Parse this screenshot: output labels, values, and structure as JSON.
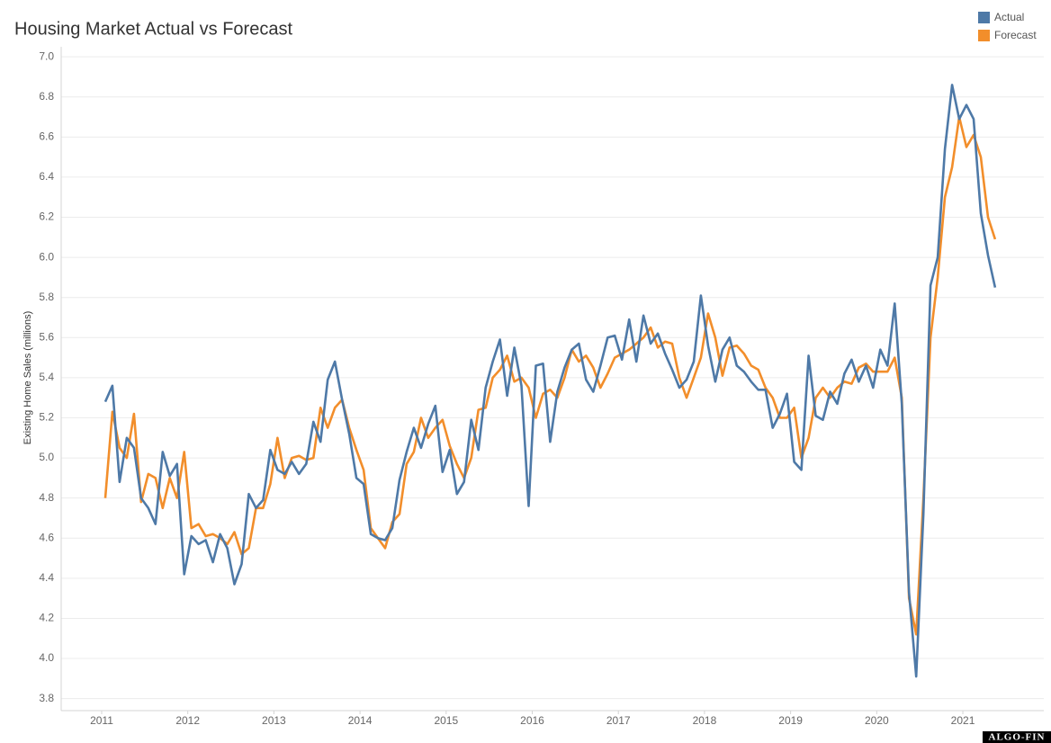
{
  "chart_data": {
    "type": "line",
    "title": "Housing Market Actual vs Forecast",
    "y_label": "Existing Home Sales (millions)",
    "watermark": "ALGO-FIN",
    "legend": "top-right",
    "grid": true,
    "x": [
      "2011-01",
      "2011-02",
      "2011-03",
      "2011-04",
      "2011-05",
      "2011-06",
      "2011-07",
      "2011-08",
      "2011-09",
      "2011-10",
      "2011-11",
      "2011-12",
      "2012-01",
      "2012-02",
      "2012-03",
      "2012-04",
      "2012-05",
      "2012-06",
      "2012-07",
      "2012-08",
      "2012-09",
      "2012-10",
      "2012-11",
      "2012-12",
      "2013-01",
      "2013-02",
      "2013-03",
      "2013-04",
      "2013-05",
      "2013-06",
      "2013-07",
      "2013-08",
      "2013-09",
      "2013-10",
      "2013-11",
      "2013-12",
      "2014-01",
      "2014-02",
      "2014-03",
      "2014-04",
      "2014-05",
      "2014-06",
      "2014-07",
      "2014-08",
      "2014-09",
      "2014-10",
      "2014-11",
      "2014-12",
      "2015-01",
      "2015-02",
      "2015-03",
      "2015-04",
      "2015-05",
      "2015-06",
      "2015-07",
      "2015-08",
      "2015-09",
      "2015-10",
      "2015-11",
      "2015-12",
      "2016-01",
      "2016-02",
      "2016-03",
      "2016-04",
      "2016-05",
      "2016-06",
      "2016-07",
      "2016-08",
      "2016-09",
      "2016-10",
      "2016-11",
      "2016-12",
      "2017-01",
      "2017-02",
      "2017-03",
      "2017-04",
      "2017-05",
      "2017-06",
      "2017-07",
      "2017-08",
      "2017-09",
      "2017-10",
      "2017-11",
      "2017-12",
      "2018-01",
      "2018-02",
      "2018-03",
      "2018-04",
      "2018-05",
      "2018-06",
      "2018-07",
      "2018-08",
      "2018-09",
      "2018-10",
      "2018-11",
      "2018-12",
      "2019-01",
      "2019-02",
      "2019-03",
      "2019-04",
      "2019-05",
      "2019-06",
      "2019-07",
      "2019-08",
      "2019-09",
      "2019-10",
      "2019-11",
      "2019-12",
      "2020-01",
      "2020-02",
      "2020-03",
      "2020-04",
      "2020-05",
      "2020-06",
      "2020-07",
      "2020-08",
      "2020-09",
      "2020-10",
      "2020-11",
      "2020-12",
      "2021-01",
      "2021-02",
      "2021-03",
      "2021-04",
      "2021-05"
    ],
    "series": [
      {
        "name": "Actual",
        "color": "#4e79a7",
        "values": [
          5.28,
          5.36,
          4.88,
          5.1,
          5.05,
          4.8,
          4.75,
          4.67,
          5.03,
          4.91,
          4.97,
          4.42,
          4.61,
          4.57,
          4.59,
          4.48,
          4.62,
          4.55,
          4.37,
          4.47,
          4.82,
          4.75,
          4.79,
          5.04,
          4.94,
          4.92,
          4.98,
          4.92,
          4.97,
          5.18,
          5.08,
          5.39,
          5.48,
          5.29,
          5.12,
          4.9,
          4.87,
          4.62,
          4.6,
          4.59,
          4.65,
          4.89,
          5.03,
          5.15,
          5.05,
          5.17,
          5.26,
          4.93,
          5.04,
          4.82,
          4.88,
          5.19,
          5.04,
          5.35,
          5.48,
          5.59,
          5.31,
          5.55,
          5.36,
          4.76,
          5.46,
          5.47,
          5.08,
          5.33,
          5.45,
          5.54,
          5.57,
          5.39,
          5.33,
          5.46,
          5.6,
          5.61,
          5.49,
          5.69,
          5.48,
          5.71,
          5.57,
          5.62,
          5.52,
          5.44,
          5.35,
          5.39,
          5.48,
          5.81,
          5.56,
          5.38,
          5.54,
          5.6,
          5.46,
          5.43,
          5.38,
          5.34,
          5.34,
          5.15,
          5.22,
          5.32,
          4.98,
          4.94,
          5.51,
          5.21,
          5.19,
          5.33,
          5.27,
          5.42,
          5.49,
          5.38,
          5.46,
          5.35,
          5.54,
          5.46,
          5.77,
          5.27,
          4.33,
          3.91,
          4.72,
          5.86,
          6.0,
          6.54,
          6.86,
          6.69,
          6.76,
          6.69,
          6.22,
          6.01,
          5.85
        ]
      },
      {
        "name": "Forecast",
        "color": "#f28e2b",
        "values": [
          4.8,
          5.23,
          5.05,
          5.0,
          5.22,
          4.78,
          4.92,
          4.9,
          4.75,
          4.9,
          4.8,
          5.03,
          4.65,
          4.67,
          4.61,
          4.62,
          4.6,
          4.57,
          4.63,
          4.52,
          4.55,
          4.75,
          4.75,
          4.87,
          5.1,
          4.9,
          5.0,
          5.01,
          4.99,
          5.0,
          5.25,
          5.15,
          5.25,
          5.29,
          5.15,
          5.04,
          4.94,
          4.65,
          4.6,
          4.55,
          4.68,
          4.72,
          4.97,
          5.03,
          5.2,
          5.1,
          5.15,
          5.19,
          5.06,
          4.97,
          4.9,
          5.0,
          5.24,
          5.25,
          5.4,
          5.44,
          5.51,
          5.38,
          5.4,
          5.35,
          5.2,
          5.32,
          5.34,
          5.3,
          5.4,
          5.54,
          5.48,
          5.51,
          5.45,
          5.35,
          5.42,
          5.5,
          5.52,
          5.54,
          5.57,
          5.6,
          5.65,
          5.55,
          5.58,
          5.57,
          5.4,
          5.3,
          5.4,
          5.5,
          5.72,
          5.6,
          5.41,
          5.55,
          5.56,
          5.52,
          5.46,
          5.44,
          5.35,
          5.3,
          5.2,
          5.2,
          5.25,
          5.0,
          5.1,
          5.3,
          5.35,
          5.3,
          5.35,
          5.38,
          5.37,
          5.45,
          5.47,
          5.43,
          5.43,
          5.43,
          5.5,
          5.3,
          4.3,
          4.12,
          4.8,
          5.6,
          5.9,
          6.3,
          6.45,
          6.7,
          6.55,
          6.61,
          6.5,
          6.2,
          6.09
        ]
      }
    ],
    "xlim": [
      2010.53,
      2021.94
    ],
    "xticks": [
      2011,
      2012,
      2013,
      2014,
      2015,
      2016,
      2017,
      2018,
      2019,
      2020,
      2021
    ],
    "ylim": [
      3.74,
      7.05
    ],
    "yticks": [
      3.8,
      {
        "value": 4,
        "label": "4.0"
      },
      4.2,
      4.4,
      4.6,
      4.8,
      {
        "value": 5,
        "label": "5.0"
      },
      5.2,
      5.4,
      5.6,
      5.8,
      {
        "value": 6,
        "label": "6.0"
      },
      6.2,
      6.4,
      6.6,
      6.8,
      {
        "value": 7,
        "label": "7.0"
      }
    ]
  }
}
